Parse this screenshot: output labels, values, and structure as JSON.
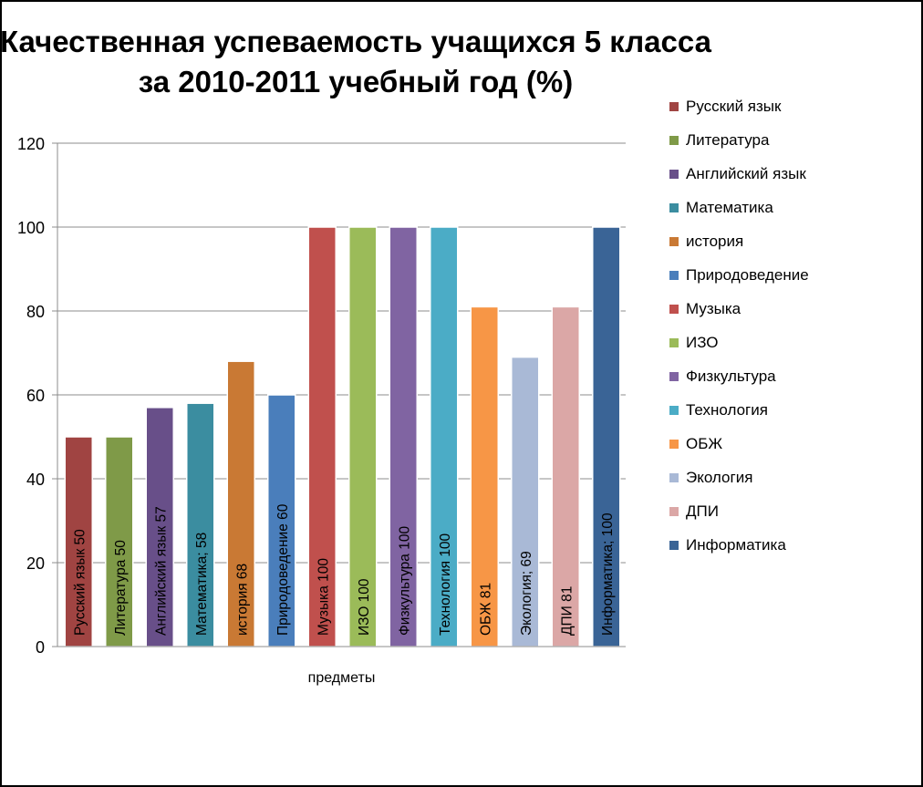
{
  "chart_data": {
    "type": "bar",
    "title_line1": "Качественная успеваемость учащихся 5 класса",
    "title_line2": "за 2010-2011 учебный год (%)",
    "xlabel": "предметы",
    "ylabel": "",
    "ylim": [
      0,
      120
    ],
    "yticks": [
      "0",
      "20",
      "40",
      "60",
      "80",
      "100",
      "120"
    ],
    "grid": true,
    "legend_position": "right",
    "categories": [
      "Русский язык",
      "Литература",
      "Английский язык",
      "Математика",
      "история",
      "Природоведение",
      "Музыка",
      "ИЗО",
      "Физкультура",
      "Технология",
      "ОБЖ",
      "Экология",
      "ДПИ",
      "Информатика"
    ],
    "values": [
      50,
      50,
      57,
      58,
      68,
      60,
      100,
      100,
      100,
      100,
      81,
      69,
      81,
      100
    ],
    "data_labels": [
      "Русский язык 50",
      "Литература 50",
      "Английский язык 57",
      "Математика; 58",
      "история 68",
      "Природоведение 60",
      "Музыка 100",
      "ИЗО 100",
      "Физкультура 100",
      "Технология 100",
      "ОБЖ 81",
      "Экология; 69",
      "ДПИ 81",
      "Информатика; 100"
    ],
    "colors": [
      "#A04442",
      "#7F9A48",
      "#684F89",
      "#3B8DA0",
      "#C97934",
      "#4A7EBB",
      "#C0504D",
      "#9BBB59",
      "#8064A2",
      "#4BACC6",
      "#F79646",
      "#A9B9D6",
      "#DBA7A6",
      "#3A6496"
    ]
  }
}
